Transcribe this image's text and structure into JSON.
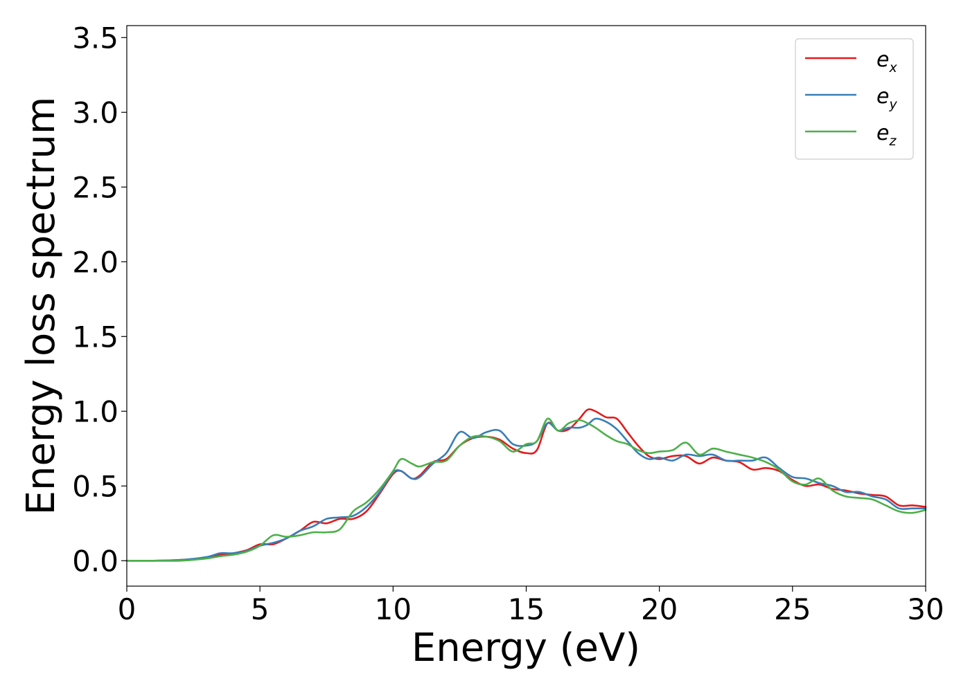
{
  "chart_data": {
    "type": "line",
    "xlabel": "Energy (eV)",
    "ylabel": "Energy loss spectrum",
    "xlim": [
      0,
      30
    ],
    "ylim": [
      -0.17,
      3.58
    ],
    "x_ticks": [
      "0",
      "5",
      "10",
      "15",
      "20",
      "25",
      "30"
    ],
    "y_ticks": [
      "0.0",
      "0.5",
      "1.0",
      "1.5",
      "2.0",
      "2.5",
      "3.0",
      "3.5"
    ],
    "grid": false,
    "legend_position": "top-right",
    "series": [
      {
        "name": "e",
        "subscript": "x",
        "color": "#e41a1c",
        "x": [
          0,
          1,
          2,
          3,
          3.5,
          4,
          4.5,
          5,
          5.5,
          6,
          6.5,
          7,
          7.5,
          8,
          8.5,
          9,
          9.5,
          10,
          10.3,
          10.7,
          11,
          11.5,
          12,
          12.5,
          13,
          13.5,
          14,
          14.5,
          15,
          15.4,
          15.8,
          16.2,
          16.6,
          17,
          17.3,
          17.6,
          18,
          18.4,
          18.8,
          19.2,
          19.6,
          20,
          20.5,
          21,
          21.5,
          22,
          22.5,
          23,
          23.5,
          24,
          24.5,
          25,
          25.5,
          26,
          26.5,
          27,
          27.5,
          28,
          28.5,
          29,
          29.5,
          30
        ],
        "y": [
          0,
          0,
          0.005,
          0.02,
          0.04,
          0.05,
          0.07,
          0.11,
          0.11,
          0.15,
          0.2,
          0.26,
          0.25,
          0.28,
          0.28,
          0.33,
          0.45,
          0.58,
          0.6,
          0.55,
          0.57,
          0.66,
          0.68,
          0.77,
          0.82,
          0.83,
          0.81,
          0.75,
          0.72,
          0.74,
          0.92,
          0.87,
          0.88,
          0.95,
          1.01,
          1,
          0.96,
          0.95,
          0.86,
          0.77,
          0.7,
          0.68,
          0.7,
          0.7,
          0.65,
          0.69,
          0.67,
          0.66,
          0.61,
          0.62,
          0.6,
          0.54,
          0.5,
          0.51,
          0.48,
          0.47,
          0.45,
          0.44,
          0.43,
          0.37,
          0.37,
          0.36
        ]
      },
      {
        "name": "e",
        "subscript": "y",
        "color": "#377eb8",
        "x": [
          0,
          1,
          2,
          3,
          3.5,
          4,
          4.5,
          5,
          5.5,
          6,
          6.5,
          7,
          7.5,
          8,
          8.5,
          9,
          9.5,
          10,
          10.3,
          10.7,
          11,
          11.5,
          12,
          12.5,
          13,
          13.5,
          14,
          14.5,
          15,
          15.4,
          15.8,
          16.2,
          16.6,
          17,
          17.3,
          17.6,
          18,
          18.4,
          18.8,
          19.2,
          19.6,
          20,
          20.5,
          21,
          21.5,
          22,
          22.5,
          23,
          23.5,
          24,
          24.5,
          25,
          25.5,
          26,
          26.5,
          27,
          27.5,
          28,
          28.5,
          29,
          29.5,
          30
        ],
        "y": [
          0,
          0,
          0.005,
          0.025,
          0.05,
          0.05,
          0.065,
          0.1,
          0.12,
          0.15,
          0.2,
          0.23,
          0.28,
          0.29,
          0.3,
          0.36,
          0.46,
          0.59,
          0.6,
          0.55,
          0.56,
          0.65,
          0.72,
          0.86,
          0.82,
          0.86,
          0.87,
          0.78,
          0.77,
          0.8,
          0.92,
          0.87,
          0.89,
          0.89,
          0.91,
          0.95,
          0.93,
          0.88,
          0.8,
          0.72,
          0.68,
          0.69,
          0.67,
          0.71,
          0.7,
          0.71,
          0.67,
          0.67,
          0.67,
          0.69,
          0.62,
          0.56,
          0.55,
          0.52,
          0.5,
          0.46,
          0.46,
          0.43,
          0.41,
          0.35,
          0.35,
          0.35
        ]
      },
      {
        "name": "e",
        "subscript": "z",
        "color": "#4daf4a",
        "x": [
          0,
          1,
          2,
          3,
          3.5,
          4,
          4.5,
          5,
          5.5,
          6,
          6.5,
          7,
          7.5,
          8,
          8.5,
          9,
          9.5,
          10,
          10.3,
          10.7,
          11,
          11.5,
          12,
          12.5,
          13,
          13.5,
          14,
          14.5,
          15,
          15.4,
          15.8,
          16.2,
          16.6,
          17,
          17.3,
          17.6,
          18,
          18.4,
          18.8,
          19.2,
          19.6,
          20,
          20.5,
          21,
          21.5,
          22,
          22.5,
          23,
          23.5,
          24,
          24.5,
          25,
          25.5,
          26,
          26.5,
          27,
          27.5,
          28,
          28.5,
          29,
          29.5,
          30
        ],
        "y": [
          0,
          0,
          0,
          0.015,
          0.03,
          0.04,
          0.06,
          0.1,
          0.17,
          0.16,
          0.17,
          0.19,
          0.19,
          0.21,
          0.33,
          0.39,
          0.48,
          0.6,
          0.68,
          0.65,
          0.63,
          0.66,
          0.67,
          0.77,
          0.83,
          0.83,
          0.8,
          0.73,
          0.78,
          0.8,
          0.95,
          0.87,
          0.92,
          0.94,
          0.92,
          0.89,
          0.84,
          0.8,
          0.78,
          0.74,
          0.72,
          0.73,
          0.74,
          0.79,
          0.71,
          0.75,
          0.73,
          0.71,
          0.69,
          0.66,
          0.61,
          0.53,
          0.51,
          0.55,
          0.47,
          0.43,
          0.42,
          0.41,
          0.37,
          0.33,
          0.32,
          0.34
        ]
      }
    ]
  }
}
